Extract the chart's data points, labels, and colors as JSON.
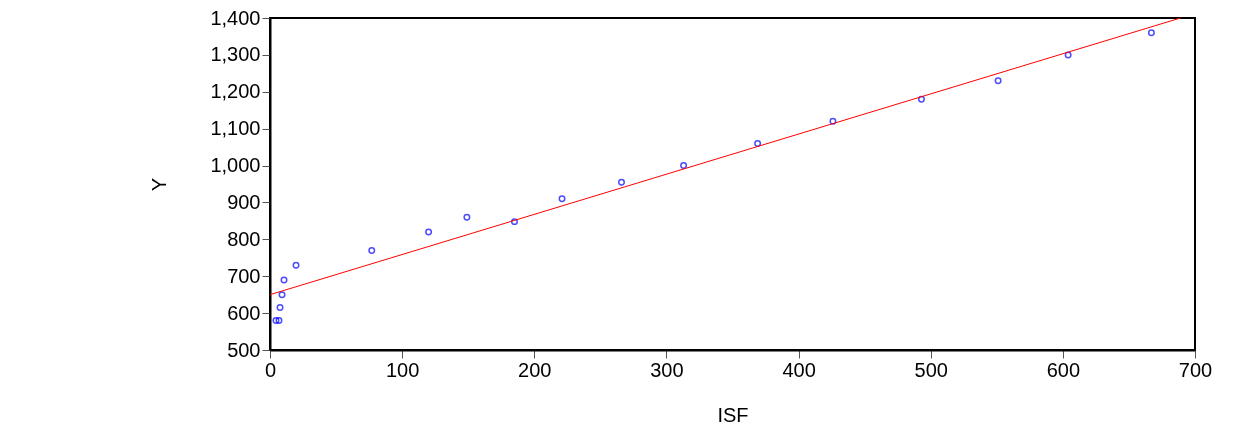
{
  "chart_data": {
    "type": "scatter",
    "xlabel": "ISF",
    "ylabel": "Y",
    "xlim": [
      0,
      700
    ],
    "ylim": [
      500,
      1400
    ],
    "xticks": [
      0,
      100,
      200,
      300,
      400,
      500,
      600,
      700
    ],
    "yticks": [
      500,
      600,
      700,
      800,
      900,
      {
        "value": 1000,
        "label": "1,000"
      },
      {
        "value": 1100,
        "label": "1,100"
      },
      {
        "value": 1200,
        "label": "1,200"
      },
      {
        "value": 1300,
        "label": "1,300"
      },
      {
        "value": 1400,
        "label": "1,400"
      }
    ],
    "grid": false,
    "marker": "circle",
    "series": [
      {
        "color": "#0000ff",
        "x": [
          4.5,
          6.8,
          7.6,
          9.1,
          10.6,
          19.7,
          77,
          120,
          149,
          185,
          221,
          266,
          313,
          369,
          426,
          493,
          551,
          604,
          667
        ],
        "values": [
          580,
          580,
          615,
          650,
          690,
          730,
          770,
          820,
          860,
          848,
          910,
          955,
          1000,
          1060,
          1120,
          1180,
          1230,
          1300,
          1360
        ]
      },
      {
        "type": "line",
        "color": "#ff0000",
        "marker": "none",
        "line_style": "solid",
        "x": [
          0,
          689
        ],
        "values": [
          650,
          1400
        ]
      }
    ]
  }
}
